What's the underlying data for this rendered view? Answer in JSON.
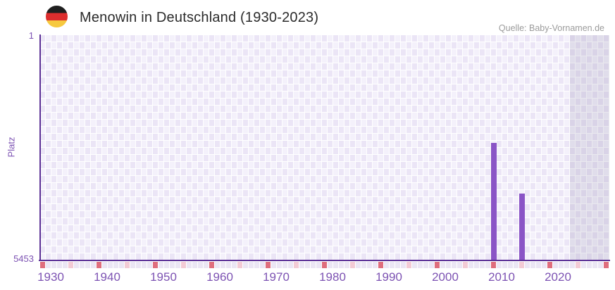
{
  "header": {
    "title": "Menowin in Deutschland (1930-2023)",
    "source": "Quelle: Baby-Vornamen.de",
    "flag_icon": "germany-flag-roundel",
    "flag_colors": {
      "black": "#1f1f1f",
      "red": "#dd2e2e",
      "gold": "#f6c93f"
    },
    "title_color": "#2b2b2b",
    "source_color": "#9b9b9b"
  },
  "chart_data": {
    "type": "bar",
    "title": "Menowin in Deutschland (1930-2023)",
    "xlabel": "",
    "ylabel": "Platz",
    "y_axis": {
      "top_label": "1",
      "bottom_label": "5453",
      "min": 1,
      "max": 5453,
      "inverted": true,
      "label_color": "#7d53b3"
    },
    "x_axis": {
      "start_year": 1930,
      "end_year": 2023,
      "display_end_year": 2030,
      "tick_labels": [
        "1930",
        "1940",
        "1950",
        "1960",
        "1970",
        "1980",
        "1990",
        "2000",
        "2010",
        "2020"
      ],
      "label_color": "#7d53b3",
      "decade_tick_color": "#df6e7d",
      "half_decade_tick_color": "#f3cbd5",
      "plain_tick_color": "#ebe6f4"
    },
    "series": [
      {
        "name": "Platz",
        "points": [
          {
            "year": 2010,
            "platz": 2600
          },
          {
            "year": 2015,
            "platz": 3830
          }
        ]
      }
    ],
    "bar_color": "#8a54c6",
    "axis_color": "#5c3196",
    "grid": {
      "on": true,
      "cell_light": "#f4f1fb",
      "cell_dark": "#ebe5f6",
      "future_region_shaded": true,
      "future_years": {
        "start": 2024,
        "end": 2030
      }
    },
    "legend": {
      "shown": false
    }
  }
}
